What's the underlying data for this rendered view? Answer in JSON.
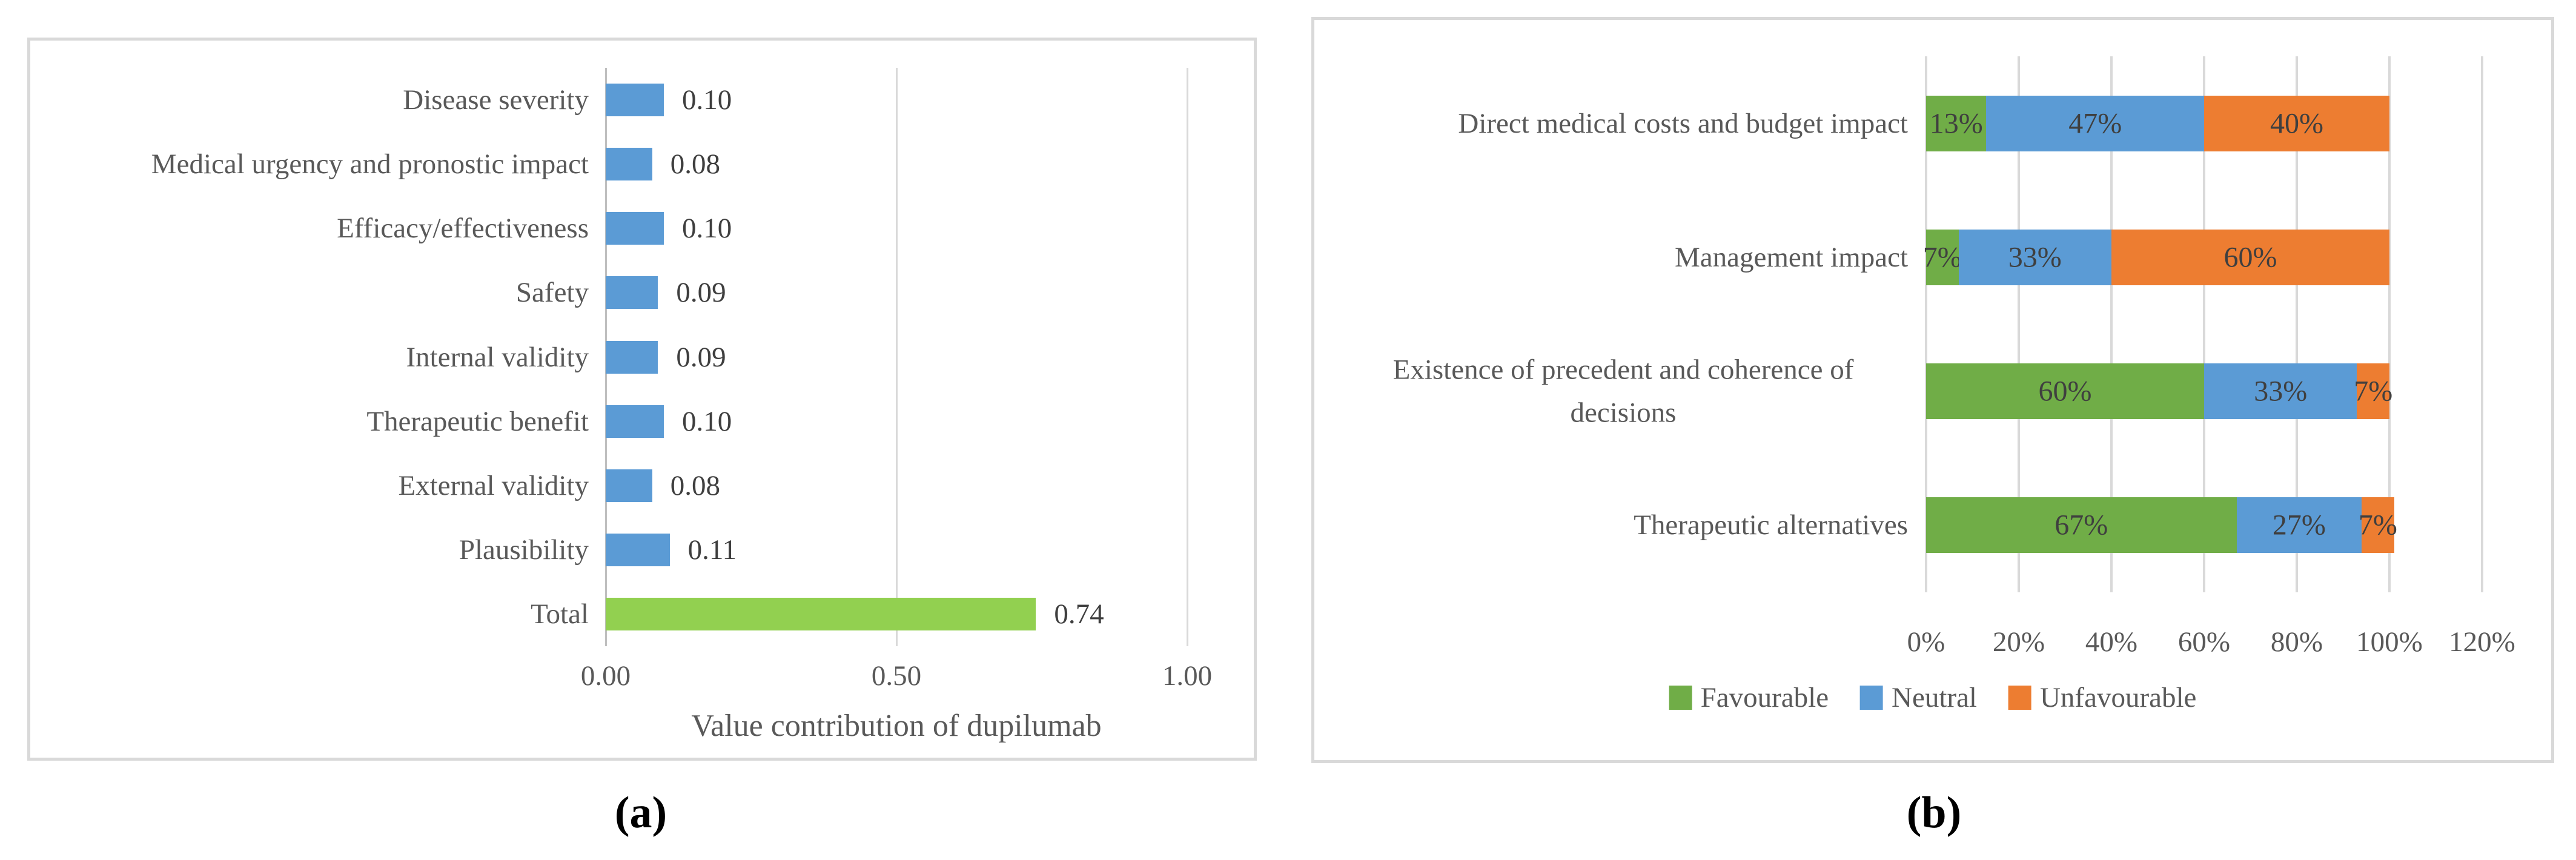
{
  "figure": {
    "caption_a": "(a)",
    "caption_b": "(b)",
    "background": "#ffffff",
    "panel_border_color": "#d9d9d9"
  },
  "chart_data": [
    {
      "type": "bar",
      "panel": "a",
      "orientation": "horizontal",
      "stacked": false,
      "title": "",
      "xlabel": "Value contribution of dupilumab",
      "ylabel": "",
      "xlim": [
        0,
        1
      ],
      "grid": true,
      "categories": [
        "Disease severity",
        "Medical urgency and pronostic impact",
        "Efficacy/effectiveness",
        "Safety",
        "Internal validity",
        "Therapeutic benefit",
        "External validity",
        "Plausibility",
        "Total"
      ],
      "values": [
        0.1,
        0.08,
        0.1,
        0.09,
        0.09,
        0.1,
        0.08,
        0.11,
        0.74
      ],
      "value_labels": [
        "0.10",
        "0.08",
        "0.10",
        "0.09",
        "0.09",
        "0.10",
        "0.08",
        "0.11",
        "0.74"
      ],
      "bar_colors": [
        "#5b9bd5",
        "#5b9bd5",
        "#5b9bd5",
        "#5b9bd5",
        "#5b9bd5",
        "#5b9bd5",
        "#5b9bd5",
        "#5b9bd5",
        "#92d050"
      ],
      "x_ticks": [
        {
          "label": "0.00",
          "value": 0
        },
        {
          "label": "0.50",
          "value": 0.5
        },
        {
          "label": "1.00",
          "value": 1
        }
      ],
      "axis_color": "#bfbfbf",
      "grid_color": "#d9d9d9",
      "text_color": "#595959",
      "value_label_color": "#3f3f3f"
    },
    {
      "type": "bar",
      "panel": "b",
      "orientation": "horizontal",
      "stacked": true,
      "title": "",
      "xlabel": "",
      "ylabel": "",
      "xlim": [
        0,
        120
      ],
      "grid": true,
      "legend_position": "bottom",
      "categories": [
        "Direct medical costs and budget impact",
        "Management impact",
        "Existence of precedent and coherence of decisions",
        "Therapeutic alternatives"
      ],
      "series": [
        {
          "name": "Favourable",
          "color": "#70ad47",
          "values": [
            13,
            7,
            60,
            67
          ],
          "labels": [
            "13%",
            "7%",
            "60%",
            "67%"
          ]
        },
        {
          "name": "Neutral",
          "color": "#5b9bd5",
          "values": [
            47,
            33,
            33,
            27
          ],
          "labels": [
            "47%",
            "33%",
            "33%",
            "27%"
          ]
        },
        {
          "name": "Unfavourable",
          "color": "#ed7d31",
          "values": [
            40,
            60,
            7,
            7
          ],
          "labels": [
            "40%",
            "60%",
            "7%",
            "7%"
          ]
        }
      ],
      "x_ticks": [
        {
          "label": "0%",
          "value": 0
        },
        {
          "label": "20%",
          "value": 20
        },
        {
          "label": "40%",
          "value": 40
        },
        {
          "label": "60%",
          "value": 60
        },
        {
          "label": "80%",
          "value": 80
        },
        {
          "label": "100%",
          "value": 100
        },
        {
          "label": "120%",
          "value": 120
        }
      ],
      "grid_color": "#d9d9d9",
      "text_color": "#595959",
      "value_label_color": "#3f3f3f"
    }
  ]
}
